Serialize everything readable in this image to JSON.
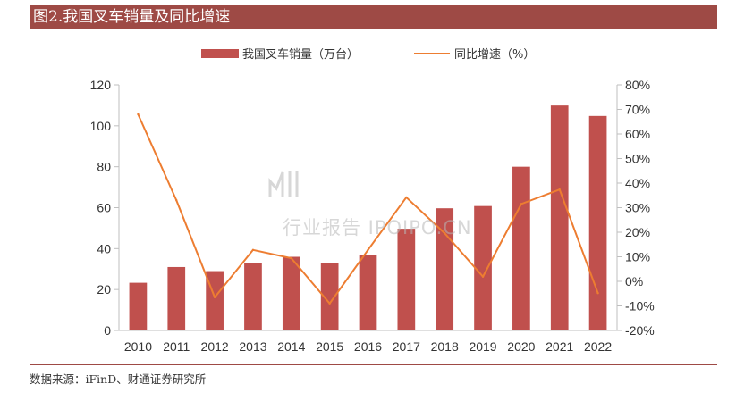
{
  "header": {
    "title": "图2.我国叉车销量及同比增速"
  },
  "footer": {
    "source": "数据来源：iFinD、财通证券研究所"
  },
  "watermark": {
    "text": "行业报告 IPOIPO.CN"
  },
  "colors": {
    "bar": "#c0504d",
    "line": "#ed7d31",
    "title_bg": "#9e4a45",
    "axis": "#bfbfbf"
  },
  "chart_data": {
    "type": "bar",
    "title": "",
    "categories": [
      "2010",
      "2011",
      "2012",
      "2013",
      "2014",
      "2015",
      "2016",
      "2017",
      "2018",
      "2019",
      "2020",
      "2021",
      "2022"
    ],
    "series": [
      {
        "name": "我国叉车销量（万台）",
        "axis": "left",
        "type": "bar",
        "values": [
          23.3,
          31.0,
          29.0,
          32.8,
          36.0,
          32.8,
          37.0,
          49.7,
          59.7,
          60.8,
          80.0,
          109.9,
          104.8
        ]
      },
      {
        "name": "同比增速（%）",
        "axis": "right",
        "type": "line",
        "values": [
          68.0,
          33.0,
          -6.5,
          12.8,
          9.4,
          -9.0,
          12.8,
          34.2,
          19.6,
          1.9,
          31.5,
          37.4,
          -4.8
        ]
      }
    ],
    "y_left": {
      "min": 0,
      "max": 120,
      "ticks": [
        "0",
        "20",
        "40",
        "60",
        "80",
        "100",
        "120"
      ]
    },
    "y_right": {
      "min": -20,
      "max": 80,
      "ticks": [
        "-20%",
        "-10%",
        "0%",
        "10%",
        "20%",
        "30%",
        "40%",
        "50%",
        "60%",
        "70%",
        "80%"
      ]
    },
    "legend_position": "top-center",
    "grid": false
  }
}
